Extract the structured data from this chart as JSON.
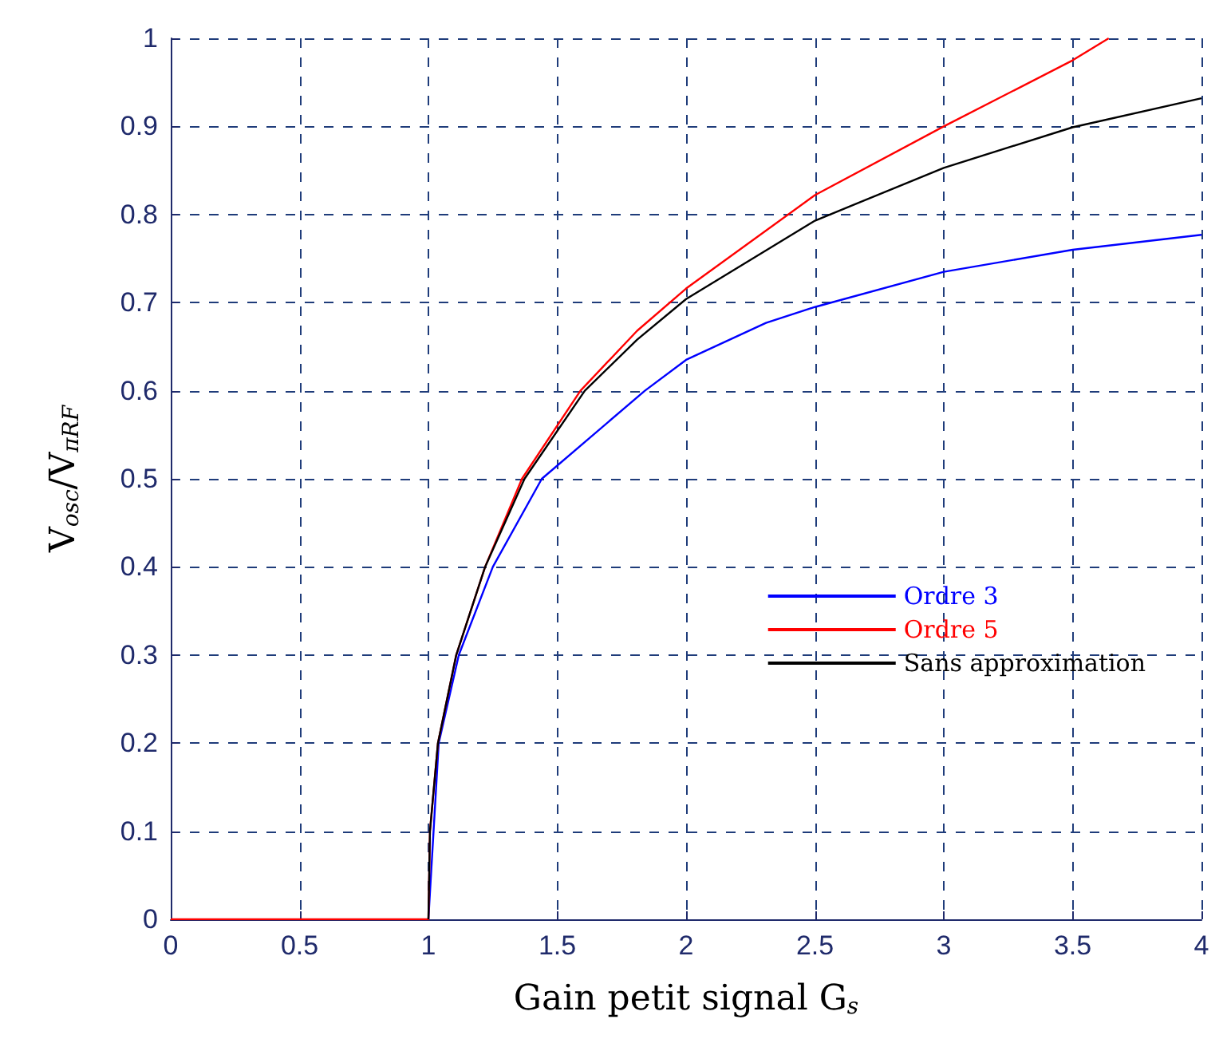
{
  "chart_data": {
    "type": "line",
    "xlabel": "Gain petit signal G$_{s}$",
    "ylabel": "V$_{osc}$/V$_{πRF}$",
    "xlim": [
      0,
      4
    ],
    "xticks": [
      0,
      0.5,
      1,
      1.5,
      2,
      2.5,
      3,
      3.5,
      4
    ],
    "ylim": [
      0,
      1
    ],
    "yticks": [
      0,
      0.1,
      0.2,
      0.3,
      0.4,
      0.5,
      0.6,
      0.7,
      0.8,
      0.9,
      1
    ],
    "grid": true,
    "legend": "right",
    "marker": "none",
    "line_style": "solid",
    "series": [
      {
        "name": "Ordre 3",
        "color": "#0000ff",
        "x": [
          1,
          1.04,
          1.118,
          1.25,
          1.44,
          1.84,
          2,
          2.31,
          2.5,
          3,
          3.5,
          4
        ],
        "values": [
          0,
          0.2,
          0.3,
          0.4,
          0.5,
          0.6,
          0.635,
          0.677,
          0.695,
          0.735,
          0.76,
          0.777
        ]
      },
      {
        "name": "Ordre 5",
        "color": "#ff0000",
        "x": [
          0,
          1,
          1.006,
          1.037,
          1.108,
          1.22,
          1.363,
          1.59,
          1.81,
          2,
          2.5,
          3,
          3.5,
          3.64
        ],
        "values": [
          0,
          0,
          0.1,
          0.2,
          0.3,
          0.4,
          0.5,
          0.6,
          0.668,
          0.716,
          0.822,
          0.9,
          0.975,
          1
        ]
      },
      {
        "name": "Sans approximation",
        "color": "#000000",
        "x": [
          1,
          1.006,
          1.037,
          1.108,
          1.22,
          1.373,
          1.607,
          1.81,
          2,
          2.5,
          3,
          3.5,
          4
        ],
        "values": [
          0,
          0.1,
          0.2,
          0.3,
          0.4,
          0.5,
          0.6,
          0.658,
          0.704,
          0.793,
          0.853,
          0.899,
          0.932
        ]
      }
    ]
  }
}
